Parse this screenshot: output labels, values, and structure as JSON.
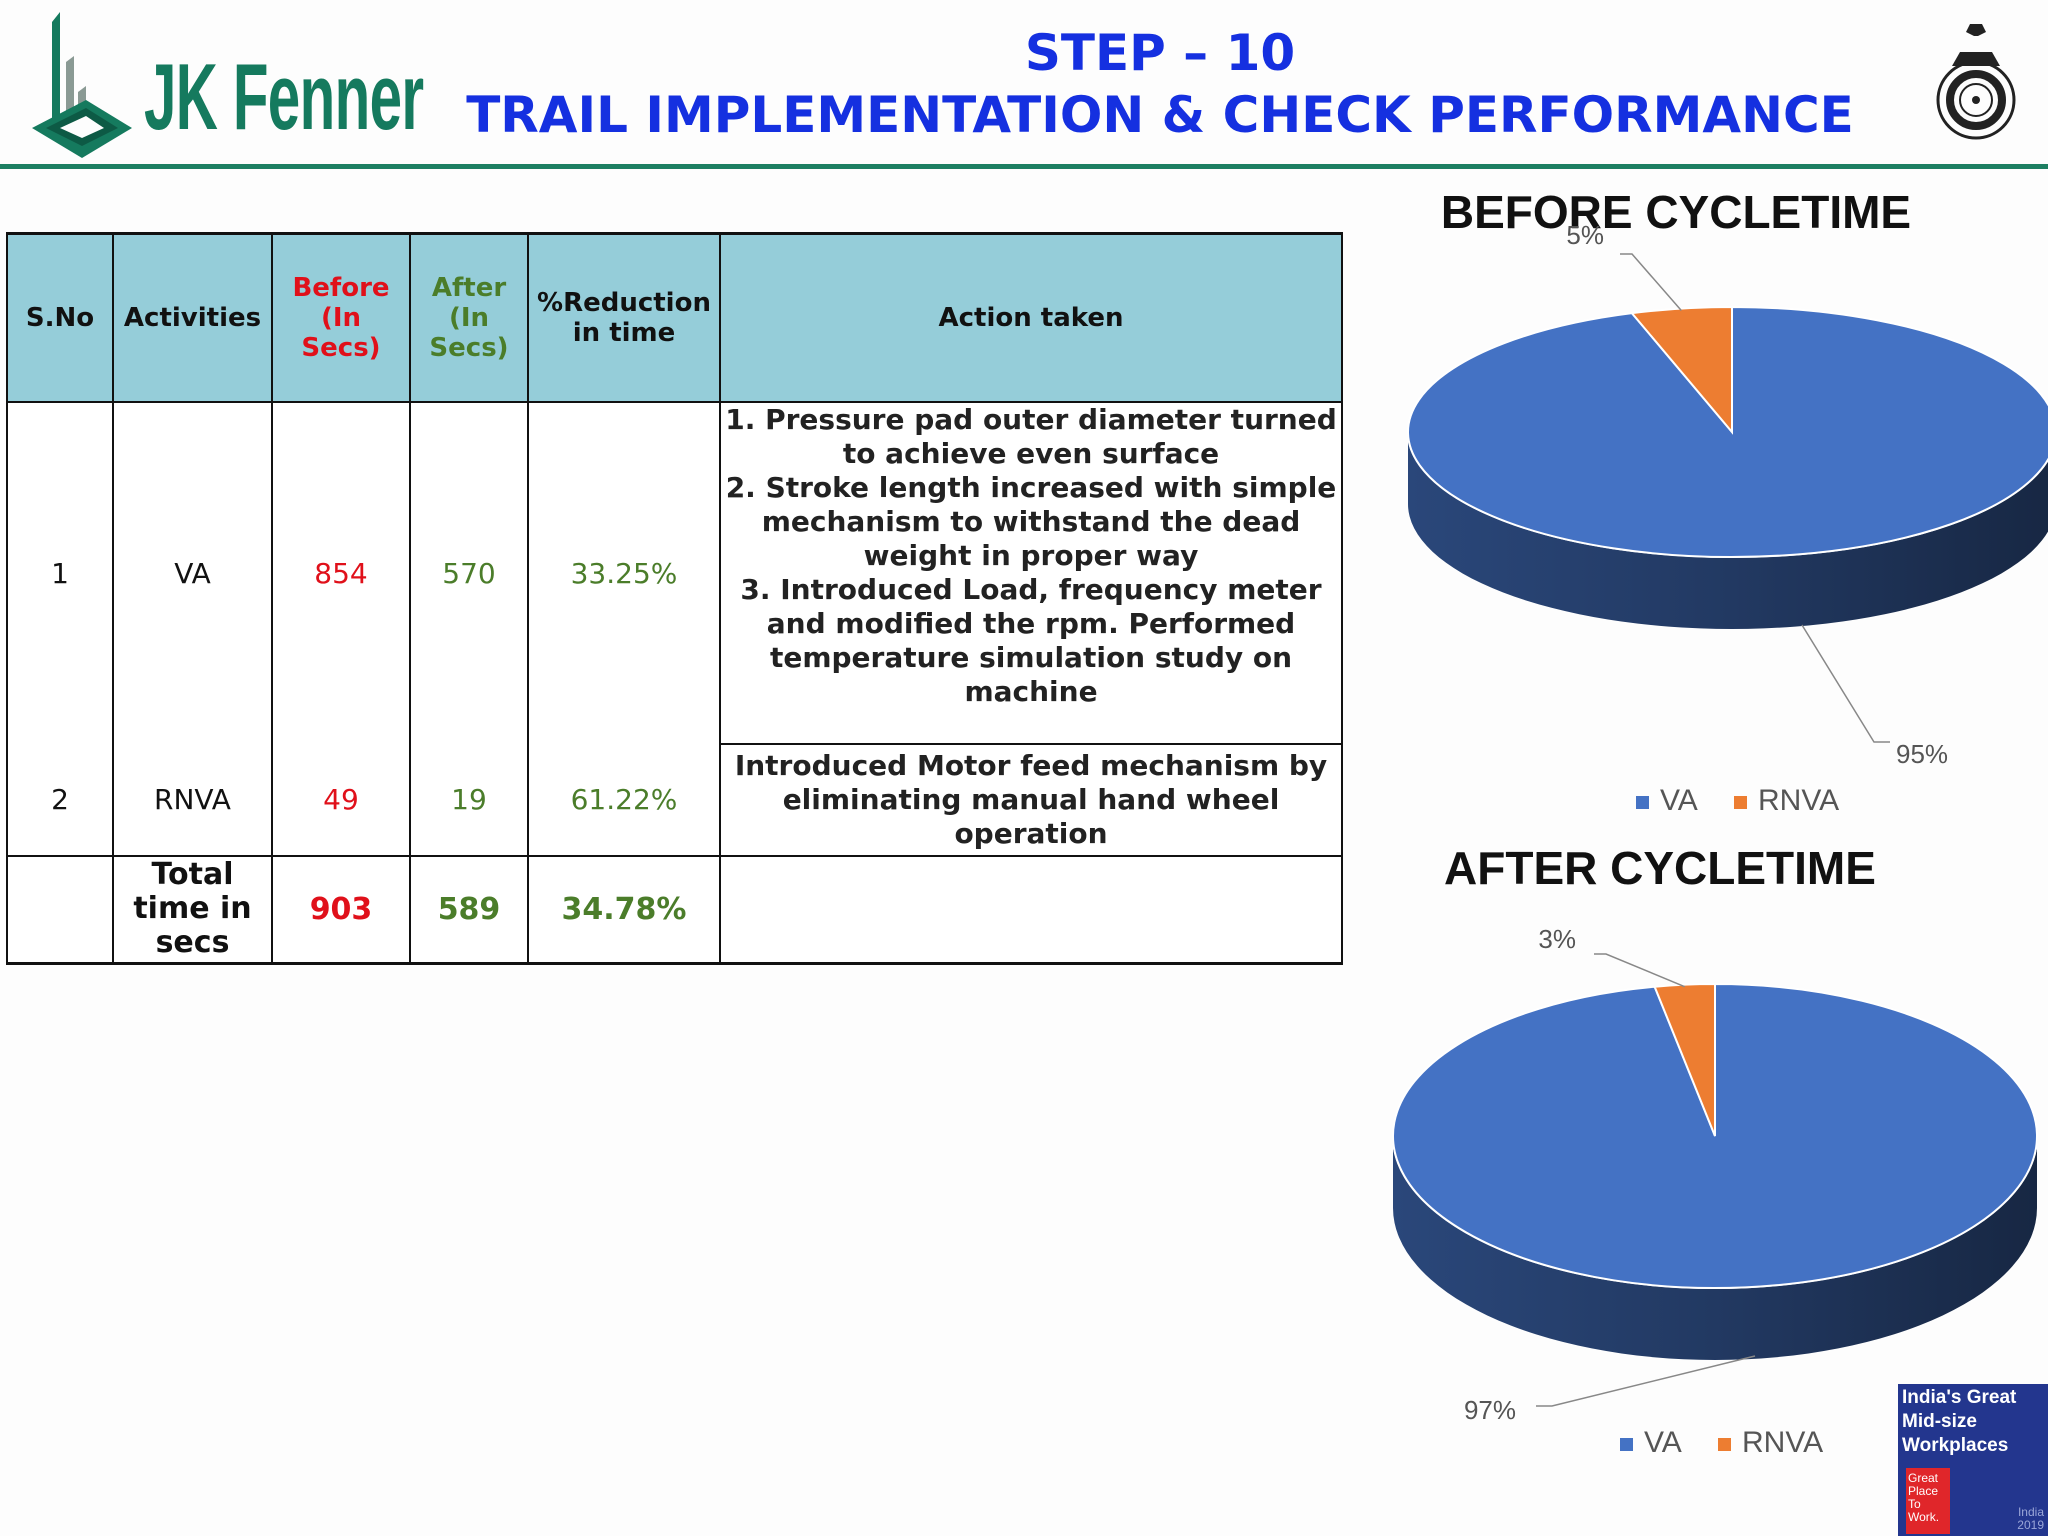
{
  "header": {
    "logo_text": "JK Fenner",
    "step": "STEP – 10",
    "title": "TRAIL IMPLEMENTATION & CHECK PERFORMANCE"
  },
  "table": {
    "headers": {
      "sno": "S.No",
      "activities": "Activities",
      "before": "Before (In Secs)",
      "after": "After (In Secs)",
      "reduction": "%Reduction in time",
      "action": "Action taken"
    },
    "rows": [
      {
        "sno": "1",
        "activity": "VA",
        "before": "854",
        "after": "570",
        "reduction": "33.25%",
        "action": "1. Pressure pad outer diameter turned to achieve even surface\n2. Stroke length increased with simple mechanism to withstand the dead weight in proper way\n3. Introduced Load, frequency meter and modified the rpm. Performed temperature simulation study on machine"
      },
      {
        "sno": "2",
        "activity": "RNVA",
        "before": "49",
        "after": "19",
        "reduction": "61.22%",
        "action": "Introduced Motor feed mechanism by eliminating manual hand wheel operation"
      }
    ],
    "total": {
      "label": "Total time in secs",
      "before": "903",
      "after": "589",
      "reduction": "34.78%",
      "action": ""
    }
  },
  "chart_data": [
    {
      "type": "pie",
      "title": "BEFORE CYCLETIME",
      "categories": [
        "VA",
        "RNVA"
      ],
      "values": [
        95,
        5
      ],
      "labels": [
        "95%",
        "5%"
      ],
      "colors": [
        "#4472c4",
        "#ed7d31"
      ],
      "legend": "bottom"
    },
    {
      "type": "pie",
      "title": "AFTER CYCLETIME",
      "categories": [
        "VA",
        "RNVA"
      ],
      "values": [
        97,
        3
      ],
      "labels": [
        "97%",
        "3%"
      ],
      "colors": [
        "#4472c4",
        "#ed7d31"
      ],
      "legend": "bottom"
    }
  ],
  "badge": {
    "title": "India's Great Mid-size Workplaces",
    "gptw": "Great\nPlace\nTo\nWork.",
    "year": "India\n2019"
  },
  "colors": {
    "title_blue": "#1530e0",
    "header_teal": "#95cdd9",
    "before_red": "#e0101a",
    "after_green": "#4b7d2a",
    "rule_green": "#1d7f62"
  }
}
